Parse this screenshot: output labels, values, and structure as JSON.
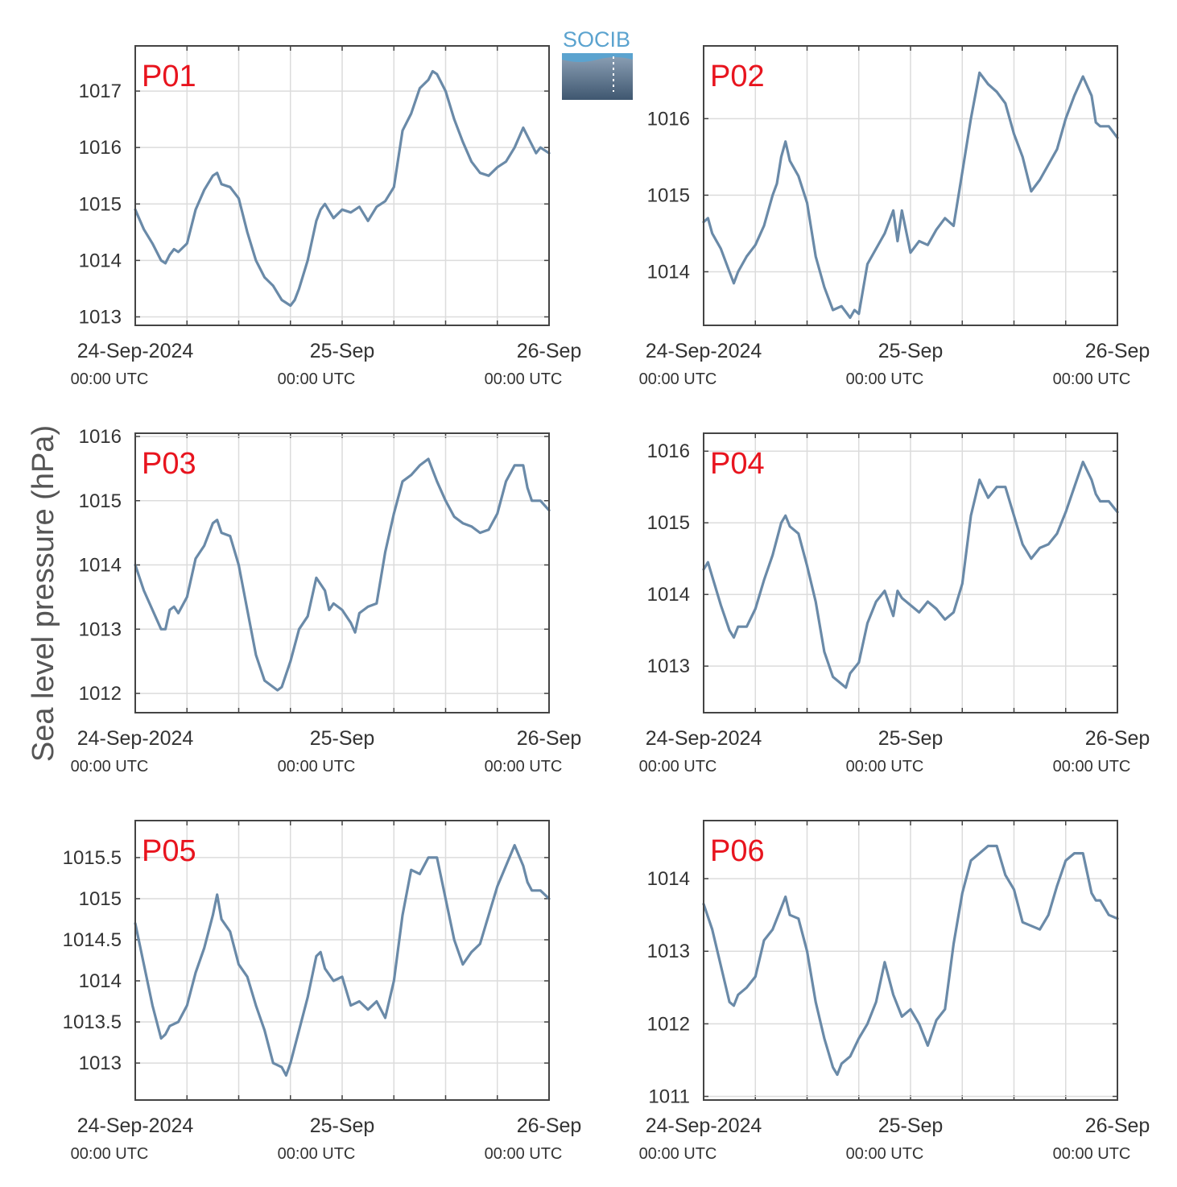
{
  "figure": {
    "ylabel": "Sea level pressure (hPa)",
    "logo_text": "SOCIB",
    "x_tick_labels": [
      "24-Sep-2024",
      "25-Sep",
      "26-Sep"
    ],
    "x_tick_sublabel": "00:00 UTC",
    "line_color": "#6a8aa8",
    "panel_label_color": "#e8141e"
  },
  "chart_data": [
    {
      "type": "line",
      "panel": "P01",
      "x_unit": "hours since 24-Sep-2024 00:00 UTC",
      "xlim": [
        0,
        48
      ],
      "ylim": [
        1012.85,
        1017.8
      ],
      "yticks": [
        1013,
        1014,
        1015,
        1016,
        1017
      ],
      "ytick_labels": [
        "1013",
        "1014",
        "1015",
        "1016",
        "1017"
      ],
      "x": [
        0,
        1,
        2,
        3,
        3.5,
        4,
        4.5,
        5,
        6,
        7,
        8,
        9,
        9.5,
        10,
        11,
        12,
        13,
        14,
        15,
        16,
        17,
        18,
        18.5,
        19,
        20,
        21,
        21.5,
        22,
        23,
        24,
        25,
        26,
        27,
        28,
        29,
        30,
        31,
        32,
        33,
        34,
        34.5,
        35,
        36,
        37,
        38,
        39,
        40,
        41,
        42,
        43,
        44,
        45,
        46,
        46.5,
        47,
        48
      ],
      "y": [
        1014.9,
        1014.55,
        1014.3,
        1014,
        1013.95,
        1014.1,
        1014.2,
        1014.15,
        1014.3,
        1014.9,
        1015.25,
        1015.5,
        1015.55,
        1015.35,
        1015.3,
        1015.1,
        1014.5,
        1014,
        1013.7,
        1013.55,
        1013.3,
        1013.2,
        1013.3,
        1013.5,
        1014,
        1014.7,
        1014.9,
        1015,
        1014.75,
        1014.9,
        1014.85,
        1014.95,
        1014.7,
        1014.95,
        1015.05,
        1015.3,
        1016.3,
        1016.6,
        1017.05,
        1017.2,
        1017.35,
        1017.3,
        1017,
        1016.5,
        1016.1,
        1015.75,
        1015.55,
        1015.5,
        1015.65,
        1015.75,
        1016,
        1016.35,
        1016.05,
        1015.9,
        1016,
        1015.9
      ]
    },
    {
      "type": "line",
      "panel": "P02",
      "x_unit": "hours since 24-Sep-2024 00:00 UTC",
      "xlim": [
        0,
        48
      ],
      "ylim": [
        1013.3,
        1016.95
      ],
      "yticks": [
        1014,
        1015,
        1016
      ],
      "ytick_labels": [
        "1014",
        "1015",
        "1016"
      ],
      "x": [
        0,
        0.5,
        1,
        2,
        3,
        3.5,
        4,
        5,
        6,
        7,
        8,
        8.5,
        9,
        9.5,
        10,
        11,
        12,
        13,
        14,
        15,
        16,
        17,
        17.5,
        18,
        19,
        20,
        21,
        22,
        22.5,
        23,
        24,
        25,
        26,
        27,
        28,
        29,
        30,
        31,
        32,
        33,
        34,
        35,
        36,
        37,
        38,
        39,
        40,
        41,
        42,
        43,
        44,
        45,
        45.5,
        46,
        47,
        48
      ],
      "y": [
        1014.65,
        1014.7,
        1014.5,
        1014.3,
        1014,
        1013.85,
        1014,
        1014.2,
        1014.35,
        1014.6,
        1015,
        1015.15,
        1015.5,
        1015.7,
        1015.45,
        1015.25,
        1014.9,
        1014.2,
        1013.8,
        1013.5,
        1013.55,
        1013.4,
        1013.5,
        1013.45,
        1014.1,
        1014.3,
        1014.5,
        1014.8,
        1014.4,
        1014.8,
        1014.25,
        1014.4,
        1014.35,
        1014.55,
        1014.7,
        1014.6,
        1015.3,
        1016,
        1016.6,
        1016.45,
        1016.35,
        1016.2,
        1015.8,
        1015.5,
        1015.05,
        1015.2,
        1015.4,
        1015.6,
        1016,
        1016.3,
        1016.55,
        1016.3,
        1015.95,
        1015.9,
        1015.9,
        1015.75
      ]
    },
    {
      "type": "line",
      "panel": "P03",
      "x_unit": "hours since 24-Sep-2024 00:00 UTC",
      "xlim": [
        0,
        48
      ],
      "ylim": [
        1011.7,
        1016.05
      ],
      "yticks": [
        1012,
        1013,
        1014,
        1015,
        1016
      ],
      "ytick_labels": [
        "1012",
        "1013",
        "1014",
        "1015",
        "1016"
      ],
      "x": [
        0,
        1,
        2,
        3,
        3.5,
        4,
        4.5,
        5,
        6,
        7,
        8,
        9,
        9.5,
        10,
        11,
        12,
        13,
        14,
        15,
        16,
        16.5,
        17,
        17.5,
        18,
        19,
        20,
        21,
        22,
        22.5,
        23,
        24,
        25,
        25.5,
        26,
        27,
        28,
        29,
        30,
        31,
        32,
        33,
        34,
        35,
        36,
        37,
        38,
        39,
        40,
        41,
        42,
        43,
        44,
        45,
        45.5,
        46,
        47,
        48
      ],
      "y": [
        1014,
        1013.6,
        1013.3,
        1013,
        1013,
        1013.3,
        1013.35,
        1013.25,
        1013.5,
        1014.1,
        1014.3,
        1014.65,
        1014.7,
        1014.5,
        1014.45,
        1014,
        1013.3,
        1012.6,
        1012.2,
        1012.1,
        1012.05,
        1012.1,
        1012.3,
        1012.5,
        1013,
        1013.2,
        1013.8,
        1013.6,
        1013.3,
        1013.4,
        1013.3,
        1013.1,
        1012.95,
        1013.25,
        1013.35,
        1013.4,
        1014.2,
        1014.8,
        1015.3,
        1015.4,
        1015.55,
        1015.65,
        1015.3,
        1015,
        1014.75,
        1014.65,
        1014.6,
        1014.5,
        1014.55,
        1014.8,
        1015.3,
        1015.55,
        1015.55,
        1015.2,
        1015,
        1015,
        1014.85
      ]
    },
    {
      "type": "line",
      "panel": "P04",
      "x_unit": "hours since 24-Sep-2024 00:00 UTC",
      "xlim": [
        0,
        48
      ],
      "ylim": [
        1012.35,
        1016.25
      ],
      "yticks": [
        1013,
        1014,
        1015,
        1016
      ],
      "ytick_labels": [
        "1013",
        "1014",
        "1015",
        "1016"
      ],
      "x": [
        0,
        0.5,
        1,
        2,
        3,
        3.5,
        4,
        5,
        6,
        7,
        8,
        9,
        9.5,
        10,
        11,
        12,
        13,
        14,
        15,
        16,
        16.5,
        17,
        18,
        19,
        20,
        21,
        22,
        22.5,
        23,
        24,
        25,
        26,
        27,
        28,
        29,
        30,
        31,
        32,
        33,
        34,
        35,
        36,
        37,
        38,
        39,
        40,
        41,
        42,
        43,
        44,
        45,
        45.5,
        46,
        47,
        48
      ],
      "y": [
        1014.35,
        1014.45,
        1014.25,
        1013.85,
        1013.5,
        1013.4,
        1013.55,
        1013.55,
        1013.8,
        1014.2,
        1014.55,
        1015,
        1015.1,
        1014.95,
        1014.85,
        1014.4,
        1013.9,
        1013.2,
        1012.85,
        1012.75,
        1012.7,
        1012.9,
        1013.05,
        1013.6,
        1013.9,
        1014.05,
        1013.7,
        1014.05,
        1013.95,
        1013.85,
        1013.75,
        1013.9,
        1013.8,
        1013.65,
        1013.75,
        1014.15,
        1015.1,
        1015.6,
        1015.35,
        1015.5,
        1015.5,
        1015.1,
        1014.7,
        1014.5,
        1014.65,
        1014.7,
        1014.85,
        1015.15,
        1015.5,
        1015.85,
        1015.6,
        1015.4,
        1015.3,
        1015.3,
        1015.15
      ]
    },
    {
      "type": "line",
      "panel": "P05",
      "x_unit": "hours since 24-Sep-2024 00:00 UTC",
      "xlim": [
        0,
        48
      ],
      "ylim": [
        1012.55,
        1015.95
      ],
      "yticks": [
        1013,
        1013.5,
        1014,
        1014.5,
        1015,
        1015.5
      ],
      "ytick_labels": [
        "1013",
        "1013.5",
        "1014",
        "1014.5",
        "1015",
        "1015.5"
      ],
      "x": [
        0,
        1,
        2,
        3,
        3.5,
        4,
        5,
        6,
        7,
        8,
        9,
        9.5,
        10,
        11,
        12,
        13,
        14,
        15,
        16,
        17,
        17.5,
        18,
        19,
        20,
        21,
        21.5,
        22,
        23,
        24,
        25,
        26,
        27,
        28,
        29,
        30,
        31,
        32,
        33,
        34,
        35,
        36,
        37,
        38,
        39,
        40,
        41,
        42,
        43,
        44,
        45,
        45.5,
        46,
        47,
        48
      ],
      "y": [
        1014.7,
        1014.2,
        1013.7,
        1013.3,
        1013.35,
        1013.45,
        1013.5,
        1013.7,
        1014.1,
        1014.4,
        1014.8,
        1015.05,
        1014.75,
        1014.6,
        1014.2,
        1014.05,
        1013.7,
        1013.4,
        1013,
        1012.95,
        1012.85,
        1013,
        1013.4,
        1013.8,
        1014.3,
        1014.35,
        1014.15,
        1014.0,
        1014.05,
        1013.7,
        1013.75,
        1013.65,
        1013.75,
        1013.55,
        1014.0,
        1014.8,
        1015.35,
        1015.3,
        1015.5,
        1015.5,
        1015,
        1014.5,
        1014.2,
        1014.35,
        1014.45,
        1014.8,
        1015.15,
        1015.4,
        1015.65,
        1015.4,
        1015.2,
        1015.1,
        1015.1,
        1015.0
      ]
    },
    {
      "type": "line",
      "panel": "P06",
      "x_unit": "hours since 24-Sep-2024 00:00 UTC",
      "xlim": [
        0,
        48
      ],
      "ylim": [
        1010.95,
        1014.8
      ],
      "yticks": [
        1011,
        1012,
        1013,
        1014
      ],
      "ytick_labels": [
        "1011",
        "1012",
        "1013",
        "1014"
      ],
      "x": [
        0,
        1,
        2,
        3,
        3.5,
        4,
        5,
        6,
        7,
        8,
        9,
        9.5,
        10,
        11,
        12,
        13,
        14,
        15,
        15.5,
        16,
        17,
        18,
        19,
        20,
        21,
        22,
        23,
        24,
        25,
        26,
        27,
        28,
        29,
        30,
        31,
        32,
        33,
        34,
        35,
        36,
        37,
        38,
        39,
        40,
        41,
        42,
        43,
        44,
        45,
        45.5,
        46,
        47,
        48
      ],
      "y": [
        1013.65,
        1013.3,
        1012.8,
        1012.3,
        1012.25,
        1012.4,
        1012.5,
        1012.65,
        1013.15,
        1013.3,
        1013.6,
        1013.75,
        1013.5,
        1013.45,
        1013,
        1012.3,
        1011.8,
        1011.4,
        1011.3,
        1011.45,
        1011.55,
        1011.8,
        1012,
        1012.3,
        1012.85,
        1012.4,
        1012.1,
        1012.2,
        1012,
        1011.7,
        1012.05,
        1012.2,
        1013.1,
        1013.8,
        1014.25,
        1014.35,
        1014.45,
        1014.45,
        1014.05,
        1013.85,
        1013.4,
        1013.35,
        1013.3,
        1013.5,
        1013.9,
        1014.25,
        1014.35,
        1014.35,
        1013.8,
        1013.7,
        1013.7,
        1013.5,
        1013.45
      ]
    }
  ]
}
